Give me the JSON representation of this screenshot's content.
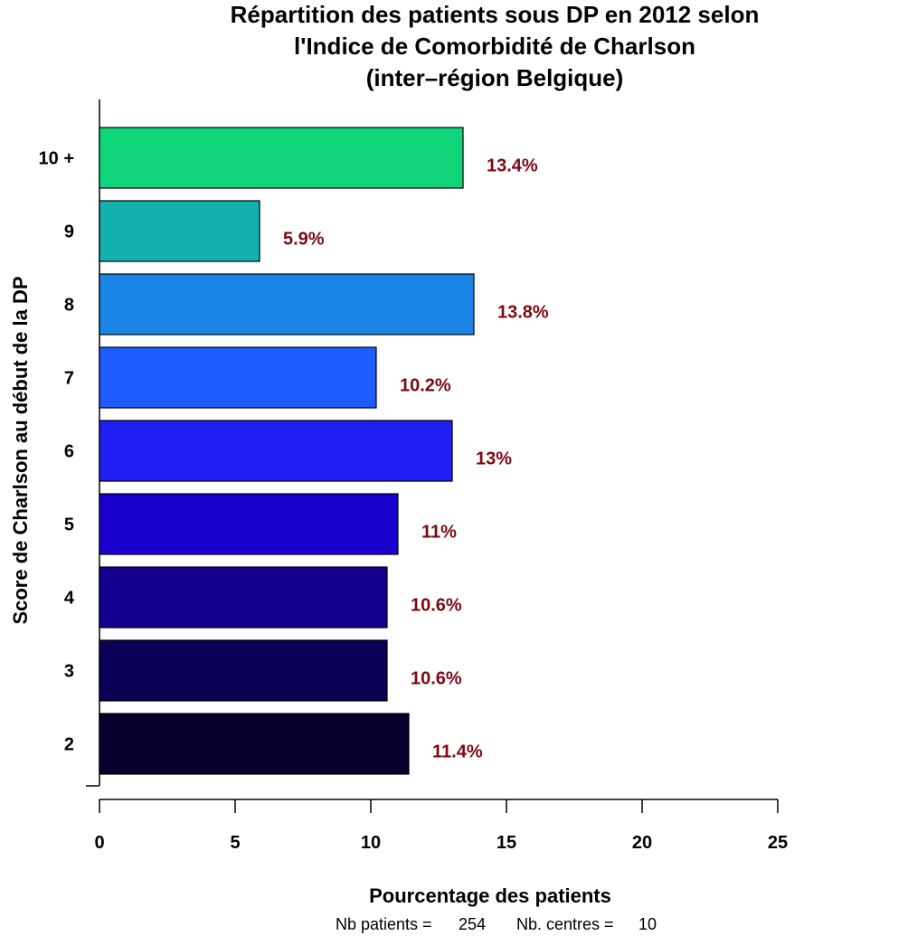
{
  "chart_data": {
    "type": "bar",
    "orientation": "horizontal",
    "title": [
      "Répartition des patients sous DP en 2012 selon",
      "l'Indice de Comorbidité de Charlson",
      "(inter–région Belgique)"
    ],
    "xlabel": "Pourcentage des patients",
    "ylabel": "Score de Charlson au début de la DP",
    "categories": [
      "2",
      "3",
      "4",
      "5",
      "6",
      "7",
      "8",
      "9",
      "10 +"
    ],
    "values": [
      11.4,
      10.6,
      10.6,
      11,
      13,
      10.2,
      13.8,
      5.9,
      13.4
    ],
    "value_labels": [
      "11.4%",
      "10.6%",
      "10.6%",
      "11%",
      "13%",
      "10.2%",
      "13.8%",
      "5.9%",
      "13.4%"
    ],
    "colors": [
      "#05002e",
      "#0a0056",
      "#130090",
      "#1a00cc",
      "#1e1ef5",
      "#1f5cff",
      "#1a85e6",
      "#14b0b0",
      "#0fd47a"
    ],
    "xlim": [
      0,
      25
    ],
    "xticks": [
      0,
      5,
      10,
      15,
      20,
      25
    ],
    "grid": false,
    "legend": "none",
    "footer": {
      "patients_label": "Nb patients =",
      "patients_value": "254",
      "centres_label": "Nb. centres =",
      "centres_value": "10"
    }
  }
}
